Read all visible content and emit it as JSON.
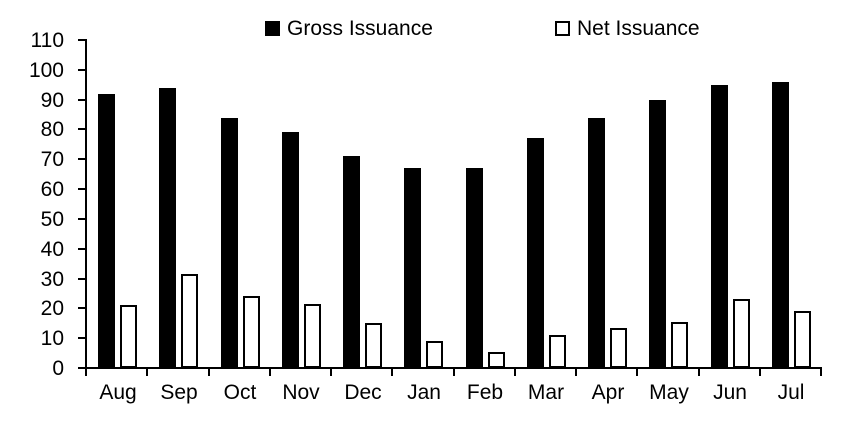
{
  "chart_data": {
    "type": "bar",
    "title": "",
    "xlabel": "",
    "ylabel": "",
    "categories": [
      "Aug",
      "Sep",
      "Oct",
      "Nov",
      "Dec",
      "Jan",
      "Feb",
      "Mar",
      "Apr",
      "May",
      "Jun",
      "Jul"
    ],
    "series": [
      {
        "name": "Gross Issuance",
        "style": "solid",
        "color": "#000000",
        "values": [
          92,
          94,
          84,
          79,
          71,
          67,
          67,
          77,
          84,
          90,
          95,
          96
        ]
      },
      {
        "name": "Net Issuance",
        "style": "outline",
        "color": "#ffffff",
        "border_color": "#000000",
        "values": [
          21,
          31.5,
          24,
          21.5,
          15,
          9,
          5.5,
          11,
          13.5,
          15.5,
          23,
          19
        ]
      }
    ],
    "ylim": [
      0,
      110
    ],
    "ytick_step": 10,
    "ytick_labels": [
      "0",
      "10",
      "20",
      "30",
      "40",
      "50",
      "60",
      "70",
      "80",
      "90",
      "100",
      "110"
    ],
    "grid": false,
    "legend_position": "top",
    "axis_color": "#000000",
    "background_color": "#ffffff"
  }
}
